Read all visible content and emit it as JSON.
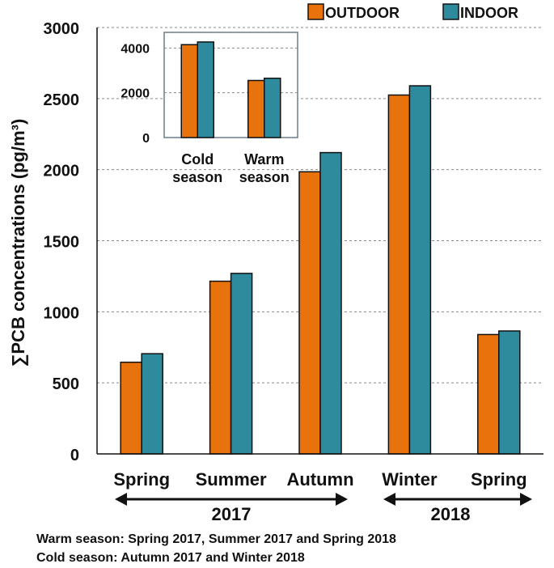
{
  "colors": {
    "outdoor": "#E8720C",
    "indoor": "#2E8B9E",
    "grid": "#888888",
    "axis": "#111111"
  },
  "legend": {
    "items": [
      "OUTDOOR",
      "INDOOR"
    ]
  },
  "y_axis_label": "∑PCB concentrations (pg/m³)",
  "year_labels": [
    "2017",
    "2018"
  ],
  "notes": [
    "Warm season: Spring 2017, Summer 2017 and Spring 2018",
    "Cold season: Autumn 2017 and Winter 2018"
  ],
  "chart_data": [
    {
      "type": "bar",
      "categories": [
        "Spring",
        "Summer",
        "Autumn",
        "Winter",
        "Spring"
      ],
      "series": [
        {
          "name": "OUTDOOR",
          "values": [
            645,
            1215,
            1985,
            2525,
            840
          ]
        },
        {
          "name": "INDOOR",
          "values": [
            705,
            1270,
            2120,
            2590,
            865
          ]
        }
      ],
      "ylabel": "∑PCB concentrations (pg/m³)",
      "ylim": [
        0,
        3000
      ],
      "yticks": [
        0,
        500,
        1000,
        1500,
        2000,
        2500,
        3000
      ],
      "grid": true,
      "legend_position": "top-right"
    },
    {
      "type": "bar",
      "categories": [
        "Cold season",
        "Warm season"
      ],
      "series": [
        {
          "name": "OUTDOOR",
          "values": [
            4150,
            2550
          ]
        },
        {
          "name": "INDOOR",
          "values": [
            4270,
            2650
          ]
        }
      ],
      "ylim": [
        0,
        4700
      ],
      "yticks": [
        0,
        2000,
        4000
      ],
      "grid": true
    }
  ]
}
